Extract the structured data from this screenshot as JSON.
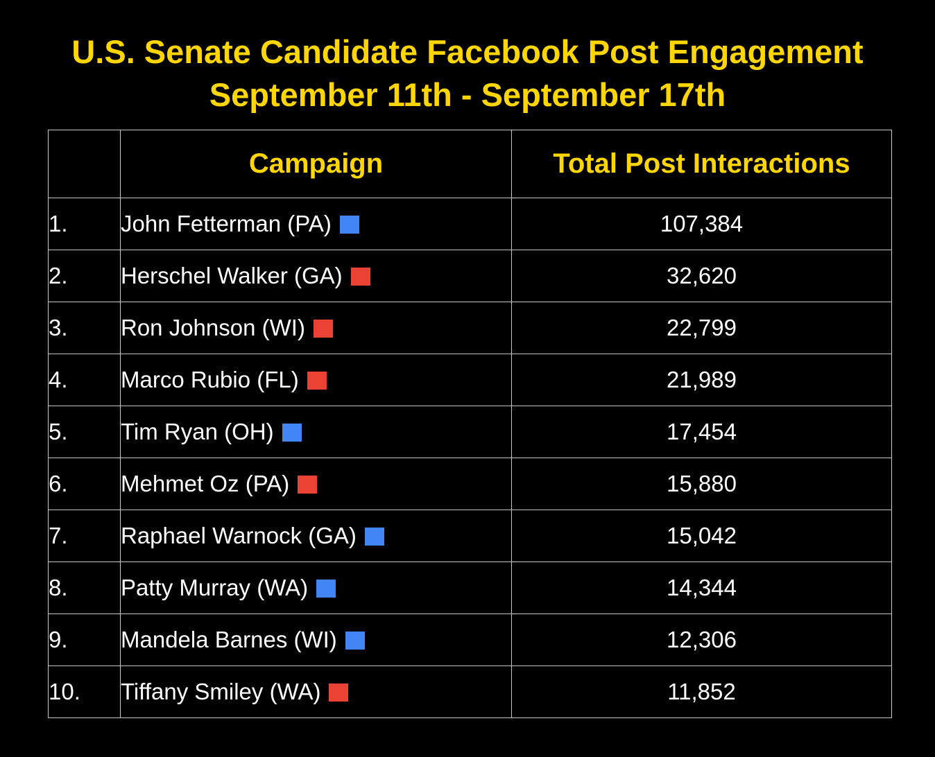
{
  "title_line1": "U.S. Senate Candidate Facebook Post Engagement",
  "title_line2": "September 11th - September 17th",
  "colors": {
    "background": "#000000",
    "title": "#FFD600",
    "democrat": "#4285F4",
    "republican": "#EA4335",
    "grid": "#c8c8c8"
  },
  "chart_data": {
    "type": "table",
    "title": "U.S. Senate Candidate Facebook Post Engagement",
    "subtitle": "September 11th - September 17th",
    "columns": [
      "",
      "Campaign",
      "Total Post Interactions"
    ],
    "rows": [
      {
        "rank": "1.",
        "campaign": "John Fetterman (PA)",
        "party_color": "#4285F4",
        "interactions": "107,384",
        "value": 107384
      },
      {
        "rank": "2.",
        "campaign": "Herschel Walker (GA)",
        "party_color": "#EA4335",
        "interactions": "32,620",
        "value": 32620
      },
      {
        "rank": "3.",
        "campaign": "Ron Johnson (WI)",
        "party_color": "#EA4335",
        "interactions": "22,799",
        "value": 22799
      },
      {
        "rank": "4.",
        "campaign": "Marco Rubio (FL)",
        "party_color": "#EA4335",
        "interactions": "21,989",
        "value": 21989
      },
      {
        "rank": "5.",
        "campaign": "Tim Ryan (OH)",
        "party_color": "#4285F4",
        "interactions": "17,454",
        "value": 17454
      },
      {
        "rank": "6.",
        "campaign": "Mehmet Oz (PA)",
        "party_color": "#EA4335",
        "interactions": "15,880",
        "value": 15880
      },
      {
        "rank": "7.",
        "campaign": "Raphael Warnock (GA)",
        "party_color": "#4285F4",
        "interactions": "15,042",
        "value": 15042
      },
      {
        "rank": "8.",
        "campaign": "Patty Murray (WA)",
        "party_color": "#4285F4",
        "interactions": "14,344",
        "value": 14344
      },
      {
        "rank": "9.",
        "campaign": "Mandela Barnes (WI)",
        "party_color": "#4285F4",
        "interactions": "12,306",
        "value": 12306
      },
      {
        "rank": "10.",
        "campaign": "Tiffany Smiley (WA)",
        "party_color": "#EA4335",
        "interactions": "11,852",
        "value": 11852
      }
    ]
  }
}
